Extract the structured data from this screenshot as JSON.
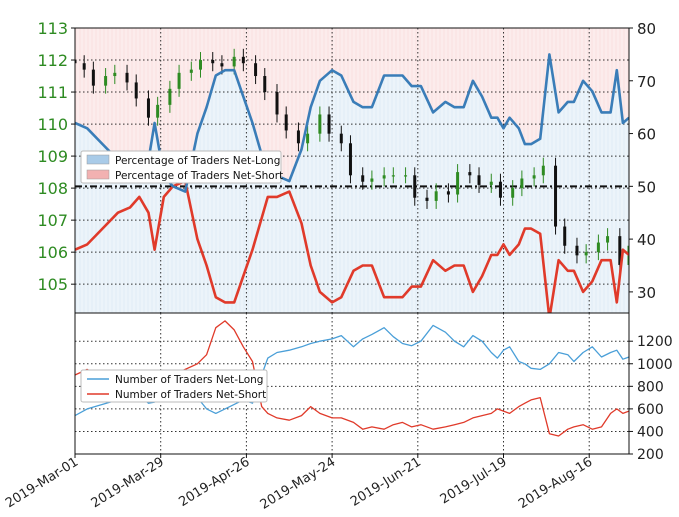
{
  "chart_data": [
    {
      "type": "line",
      "panel": "top",
      "left_axis": {
        "ticks": [
          105,
          106,
          107,
          108,
          109,
          110,
          111,
          112,
          113
        ],
        "labels": [
          "105",
          "106",
          "107",
          "108",
          "109",
          "110",
          "111",
          "112",
          "113"
        ],
        "range": [
          104.1,
          113.0
        ],
        "color": "#2e8b22"
      },
      "right_axis": {
        "ticks": [
          30,
          40,
          50,
          60,
          70,
          80
        ],
        "labels": [
          "30",
          "40",
          "50",
          "60",
          "70",
          "80"
        ],
        "range": [
          26.0,
          80.0
        ],
        "color": "#222222"
      },
      "x_axis": {
        "ticks": [
          "2019-Mar-01",
          "2019-Mar-29",
          "2019-Apr-26",
          "2019-May-24",
          "2019-Jun-21",
          "2019-Jul-19",
          "2019-Aug-16"
        ],
        "range": [
          "2019-Mar-01",
          "2019-Aug-29"
        ]
      },
      "reference_line": {
        "value": 50,
        "axis": "right",
        "style": "dash-dot"
      },
      "grid": true,
      "legend": {
        "placement": "center-left",
        "entries": [
          {
            "label": "Percentage of Traders Net-Long",
            "color": "#a9cbe8"
          },
          {
            "label": "Percentage of Traders Net-Short",
            "color": "#f2b1b1"
          }
        ]
      },
      "net_long_pct": {
        "name": "Percentage of Traders Net-Long",
        "color": "#3a7db8",
        "x": [
          "2019-Mar-01",
          "2019-Mar-05",
          "2019-Mar-10",
          "2019-Mar-15",
          "2019-Mar-19",
          "2019-Mar-22",
          "2019-Mar-25",
          "2019-Mar-27",
          "2019-Mar-30",
          "2019-Apr-02",
          "2019-Apr-06",
          "2019-Apr-10",
          "2019-Apr-13",
          "2019-Apr-16",
          "2019-Apr-19",
          "2019-Apr-22",
          "2019-Apr-25",
          "2019-Apr-28",
          "2019-May-01",
          "2019-May-03",
          "2019-May-06",
          "2019-May-10",
          "2019-May-14",
          "2019-May-17",
          "2019-May-20",
          "2019-May-24",
          "2019-May-27",
          "2019-May-31",
          "2019-Jun-03",
          "2019-Jun-06",
          "2019-Jun-10",
          "2019-Jun-13",
          "2019-Jun-16",
          "2019-Jun-19",
          "2019-Jun-22",
          "2019-Jun-26",
          "2019-Jun-30",
          "2019-Jul-03",
          "2019-Jul-06",
          "2019-Jul-09",
          "2019-Jul-12",
          "2019-Jul-15",
          "2019-Jul-17",
          "2019-Jul-19",
          "2019-Jul-21",
          "2019-Jul-24",
          "2019-Jul-26",
          "2019-Jul-28",
          "2019-Jul-31",
          "2019-Aug-03",
          "2019-Aug-06",
          "2019-Aug-09",
          "2019-Aug-11",
          "2019-Aug-14",
          "2019-Aug-17",
          "2019-Aug-20",
          "2019-Aug-23",
          "2019-Aug-25",
          "2019-Aug-27",
          "2019-Aug-29"
        ],
        "values": [
          62,
          61,
          58,
          55,
          54,
          52,
          55,
          62,
          52,
          50,
          49,
          60,
          65,
          71,
          72,
          72,
          67,
          62,
          56,
          52,
          52,
          51,
          57,
          65,
          70,
          72,
          71,
          66,
          65,
          65,
          71,
          71,
          71,
          69,
          69,
          64,
          66,
          65,
          65,
          70,
          67,
          63,
          63,
          61,
          63,
          61,
          58,
          58,
          59,
          75,
          64,
          66,
          66,
          70,
          68,
          64,
          64,
          72,
          62,
          63
        ]
      },
      "net_short_pct": {
        "name": "Percentage of Traders Net-Short",
        "color": "#e03a2a",
        "x": [
          "2019-Mar-01",
          "2019-Mar-05",
          "2019-Mar-10",
          "2019-Mar-15",
          "2019-Mar-19",
          "2019-Mar-22",
          "2019-Mar-25",
          "2019-Mar-27",
          "2019-Mar-30",
          "2019-Apr-02",
          "2019-Apr-06",
          "2019-Apr-10",
          "2019-Apr-13",
          "2019-Apr-16",
          "2019-Apr-19",
          "2019-Apr-22",
          "2019-Apr-25",
          "2019-Apr-28",
          "2019-May-01",
          "2019-May-03",
          "2019-May-06",
          "2019-May-10",
          "2019-May-14",
          "2019-May-17",
          "2019-May-20",
          "2019-May-24",
          "2019-May-27",
          "2019-May-31",
          "2019-Jun-03",
          "2019-Jun-06",
          "2019-Jun-10",
          "2019-Jun-13",
          "2019-Jun-16",
          "2019-Jun-19",
          "2019-Jun-22",
          "2019-Jun-26",
          "2019-Jun-30",
          "2019-Jul-03",
          "2019-Jul-06",
          "2019-Jul-09",
          "2019-Jul-12",
          "2019-Jul-15",
          "2019-Jul-17",
          "2019-Jul-19",
          "2019-Jul-21",
          "2019-Jul-24",
          "2019-Jul-26",
          "2019-Jul-28",
          "2019-Jul-31",
          "2019-Aug-03",
          "2019-Aug-06",
          "2019-Aug-09",
          "2019-Aug-11",
          "2019-Aug-14",
          "2019-Aug-17",
          "2019-Aug-20",
          "2019-Aug-23",
          "2019-Aug-25",
          "2019-Aug-27",
          "2019-Aug-29"
        ],
        "values": [
          38,
          39,
          42,
          45,
          46,
          48,
          45,
          38,
          48,
          50,
          51,
          40,
          35,
          29,
          28,
          28,
          33,
          38,
          44,
          48,
          48,
          49,
          43,
          35,
          30,
          28,
          29,
          34,
          35,
          35,
          29,
          29,
          29,
          31,
          31,
          36,
          34,
          35,
          35,
          30,
          33,
          37,
          37,
          39,
          37,
          39,
          42,
          42,
          41,
          25,
          36,
          34,
          34,
          30,
          32,
          36,
          36,
          28,
          38,
          37
        ]
      },
      "price_candles": {
        "name": "",
        "up_color": "#2e8b22",
        "down_color": "#111111",
        "x": [
          "2019-Mar-01",
          "2019-Mar-04",
          "2019-Mar-07",
          "2019-Mar-11",
          "2019-Mar-14",
          "2019-Mar-18",
          "2019-Mar-21",
          "2019-Mar-25",
          "2019-Mar-28",
          "2019-Apr-01",
          "2019-Apr-04",
          "2019-Apr-08",
          "2019-Apr-11",
          "2019-Apr-15",
          "2019-Apr-18",
          "2019-Apr-22",
          "2019-Apr-25",
          "2019-Apr-29",
          "2019-May-02",
          "2019-May-06",
          "2019-May-09",
          "2019-May-13",
          "2019-May-16",
          "2019-May-20",
          "2019-May-23",
          "2019-May-27",
          "2019-May-30",
          "2019-Jun-03",
          "2019-Jun-06",
          "2019-Jun-10",
          "2019-Jun-13",
          "2019-Jun-17",
          "2019-Jun-20",
          "2019-Jun-24",
          "2019-Jun-27",
          "2019-Jul-01",
          "2019-Jul-04",
          "2019-Jul-08",
          "2019-Jul-11",
          "2019-Jul-15",
          "2019-Jul-18",
          "2019-Jul-22",
          "2019-Jul-25",
          "2019-Jul-29",
          "2019-Aug-01",
          "2019-Aug-05",
          "2019-Aug-08",
          "2019-Aug-12",
          "2019-Aug-15",
          "2019-Aug-19",
          "2019-Aug-22",
          "2019-Aug-26",
          "2019-Aug-29"
        ],
        "values": [
          111.9,
          111.7,
          111.2,
          111.5,
          111.6,
          111.3,
          110.8,
          110.2,
          110.6,
          111.1,
          111.6,
          111.7,
          112.0,
          111.9,
          111.8,
          112.1,
          111.9,
          111.5,
          111.0,
          110.3,
          109.8,
          109.4,
          109.7,
          110.3,
          109.7,
          109.4,
          108.4,
          108.2,
          108.3,
          108.4,
          108.4,
          108.4,
          107.7,
          107.6,
          107.9,
          107.8,
          108.5,
          108.4,
          108.1,
          108.2,
          107.7,
          108.0,
          108.3,
          108.4,
          108.7,
          106.8,
          106.2,
          105.9,
          106.0,
          106.3,
          106.5,
          105.6,
          106.2
        ]
      }
    },
    {
      "type": "line",
      "panel": "bottom",
      "right_axis": {
        "ticks": [
          200,
          400,
          600,
          800,
          1000,
          1200
        ],
        "labels": [
          "200",
          "400",
          "600",
          "800",
          "1000",
          "1200"
        ],
        "range": [
          200,
          1450
        ]
      },
      "grid": true,
      "legend": {
        "placement": "center-left",
        "entries": [
          {
            "label": "Number of Traders Net-Long",
            "color": "#4a9fd8"
          },
          {
            "label": "Number of Traders Net-Short",
            "color": "#e03a2a"
          }
        ]
      },
      "series": [
        {
          "name": "Number of Traders Net-Long",
          "color": "#4a9fd8",
          "x": [
            "2019-Mar-01",
            "2019-Mar-05",
            "2019-Mar-10",
            "2019-Mar-15",
            "2019-Mar-19",
            "2019-Mar-22",
            "2019-Mar-25",
            "2019-Mar-27",
            "2019-Mar-30",
            "2019-Apr-02",
            "2019-Apr-06",
            "2019-Apr-10",
            "2019-Apr-13",
            "2019-Apr-16",
            "2019-Apr-19",
            "2019-Apr-22",
            "2019-Apr-25",
            "2019-Apr-28",
            "2019-May-01",
            "2019-May-03",
            "2019-May-06",
            "2019-May-10",
            "2019-May-14",
            "2019-May-17",
            "2019-May-20",
            "2019-May-24",
            "2019-May-27",
            "2019-May-31",
            "2019-Jun-03",
            "2019-Jun-06",
            "2019-Jun-10",
            "2019-Jun-13",
            "2019-Jun-16",
            "2019-Jun-19",
            "2019-Jun-22",
            "2019-Jun-26",
            "2019-Jun-30",
            "2019-Jul-03",
            "2019-Jul-06",
            "2019-Jul-09",
            "2019-Jul-12",
            "2019-Jul-15",
            "2019-Jul-17",
            "2019-Jul-19",
            "2019-Jul-21",
            "2019-Jul-24",
            "2019-Jul-26",
            "2019-Jul-28",
            "2019-Jul-31",
            "2019-Aug-03",
            "2019-Aug-06",
            "2019-Aug-09",
            "2019-Aug-11",
            "2019-Aug-14",
            "2019-Aug-17",
            "2019-Aug-20",
            "2019-Aug-23",
            "2019-Aug-25",
            "2019-Aug-27",
            "2019-Aug-29"
          ],
          "values": [
            540,
            600,
            640,
            680,
            700,
            720,
            650,
            660,
            700,
            720,
            740,
            700,
            600,
            560,
            600,
            640,
            680,
            650,
            900,
            1050,
            1100,
            1120,
            1150,
            1180,
            1200,
            1220,
            1250,
            1150,
            1220,
            1260,
            1320,
            1240,
            1180,
            1160,
            1200,
            1340,
            1280,
            1200,
            1150,
            1250,
            1200,
            1100,
            1050,
            1120,
            1150,
            1020,
            1000,
            960,
            950,
            1000,
            1100,
            1080,
            1020,
            1100,
            1150,
            1060,
            1100,
            1120,
            1040,
            1060
          ]
        },
        {
          "name": "Number of Traders Net-Short",
          "color": "#e03a2a",
          "x": [
            "2019-Mar-01",
            "2019-Mar-05",
            "2019-Mar-10",
            "2019-Mar-15",
            "2019-Mar-19",
            "2019-Mar-22",
            "2019-Mar-25",
            "2019-Mar-27",
            "2019-Mar-30",
            "2019-Apr-02",
            "2019-Apr-06",
            "2019-Apr-10",
            "2019-Apr-13",
            "2019-Apr-16",
            "2019-Apr-19",
            "2019-Apr-22",
            "2019-Apr-25",
            "2019-Apr-28",
            "2019-May-01",
            "2019-May-03",
            "2019-May-06",
            "2019-May-10",
            "2019-May-14",
            "2019-May-17",
            "2019-May-20",
            "2019-May-24",
            "2019-May-27",
            "2019-May-31",
            "2019-Jun-03",
            "2019-Jun-06",
            "2019-Jun-10",
            "2019-Jun-13",
            "2019-Jun-16",
            "2019-Jun-19",
            "2019-Jun-22",
            "2019-Jun-26",
            "2019-Jun-30",
            "2019-Jul-03",
            "2019-Jul-06",
            "2019-Jul-09",
            "2019-Jul-12",
            "2019-Jul-15",
            "2019-Jul-17",
            "2019-Jul-19",
            "2019-Jul-21",
            "2019-Jul-24",
            "2019-Jul-26",
            "2019-Jul-28",
            "2019-Jul-31",
            "2019-Aug-03",
            "2019-Aug-06",
            "2019-Aug-09",
            "2019-Aug-11",
            "2019-Aug-14",
            "2019-Aug-17",
            "2019-Aug-20",
            "2019-Aug-23",
            "2019-Aug-25",
            "2019-Aug-27",
            "2019-Aug-29"
          ],
          "values": [
            900,
            950,
            880,
            870,
            860,
            840,
            850,
            800,
            860,
            900,
            950,
            1000,
            1080,
            1320,
            1380,
            1300,
            1150,
            1020,
            620,
            560,
            520,
            500,
            540,
            620,
            560,
            520,
            520,
            480,
            420,
            440,
            420,
            460,
            480,
            440,
            460,
            420,
            440,
            460,
            480,
            520,
            540,
            560,
            600,
            580,
            560,
            620,
            650,
            680,
            700,
            380,
            360,
            420,
            440,
            460,
            420,
            440,
            560,
            600,
            560,
            580
          ]
        }
      ]
    }
  ]
}
